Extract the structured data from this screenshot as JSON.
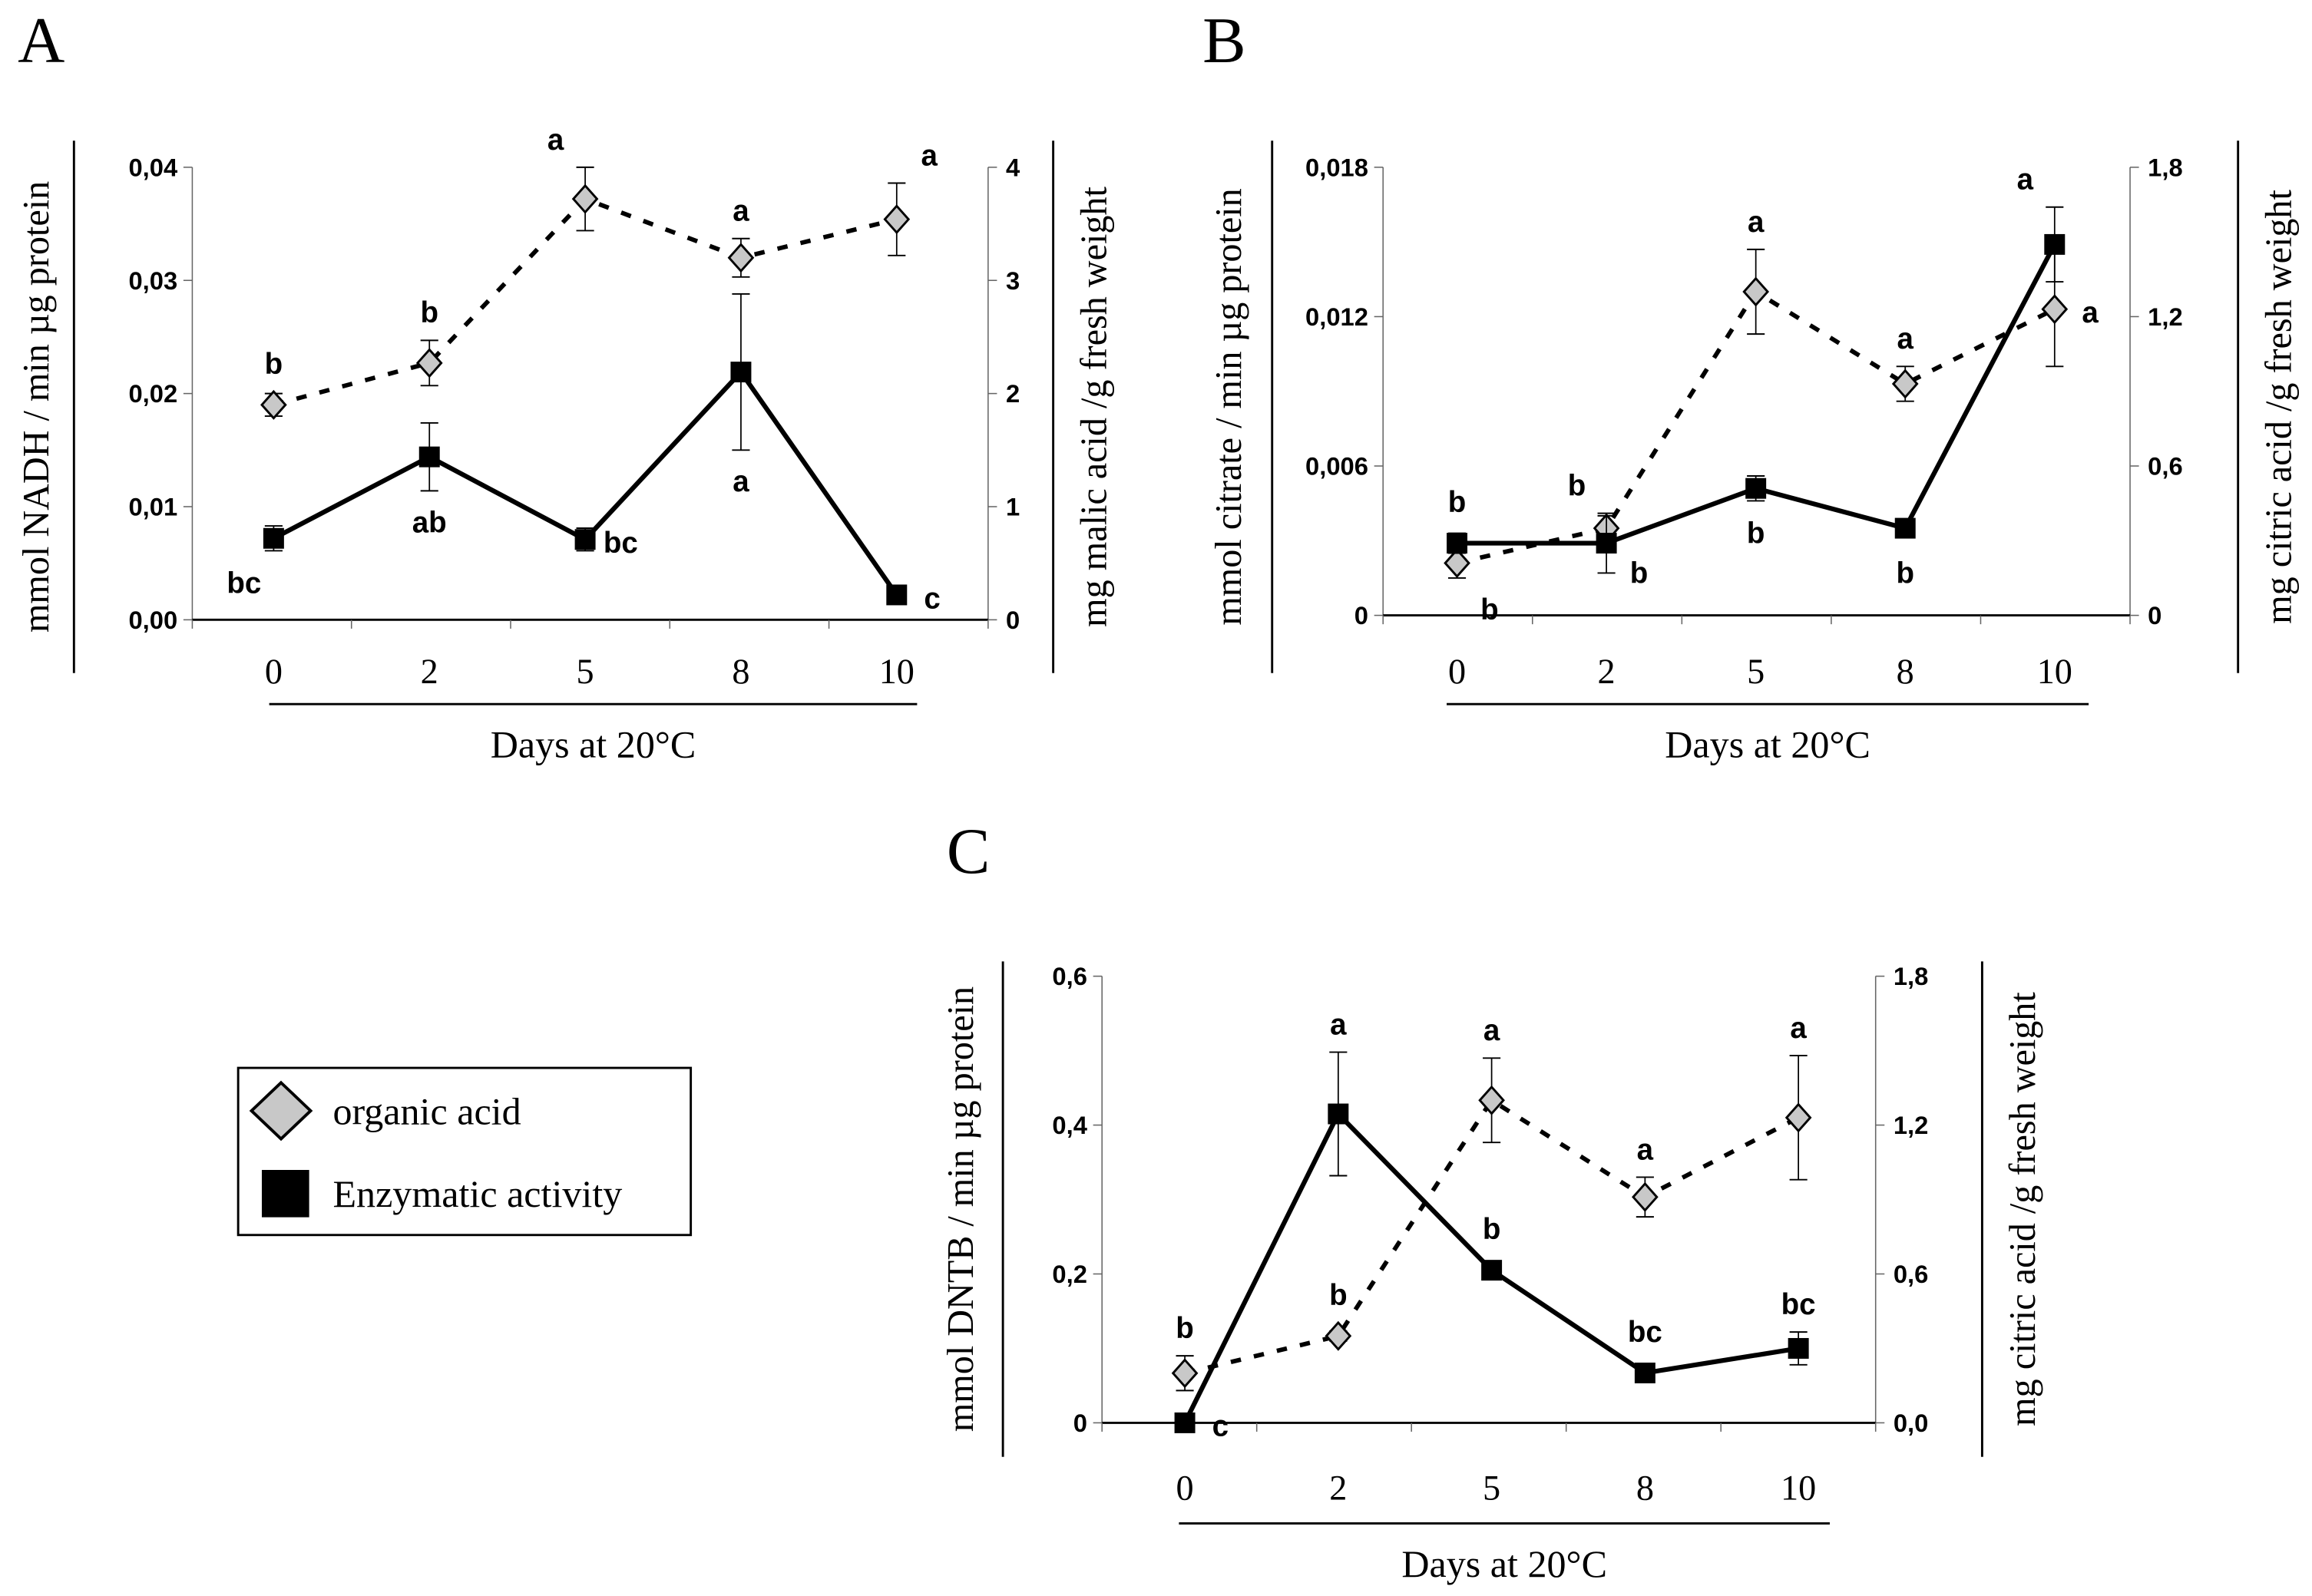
{
  "chart_data": [
    {
      "type": "line",
      "panel": "A",
      "xlabel": "Days at 20°C",
      "categories": [
        "0",
        "2",
        "5",
        "8",
        "10"
      ],
      "ylabel_left": "mmol NADH / min µg protein",
      "ylabel_right": "mg malic acid /g fresh weight",
      "ylim_left": [
        0,
        0.04
      ],
      "ylim_right": [
        0,
        4
      ],
      "yticks_left": [
        "0,00",
        "0,01",
        "0,02",
        "0,03",
        "0,04"
      ],
      "yticks_right": [
        "0",
        "1",
        "2",
        "3",
        "4"
      ],
      "series": [
        {
          "name": "Enzymatic activity",
          "axis": "left",
          "values": [
            0.0072,
            0.0144,
            0.0071,
            0.0219,
            0.0022
          ],
          "errors": [
            0.0011,
            0.003,
            0.001,
            0.0069,
            0
          ],
          "letters": [
            "bc",
            "ab",
            "bc",
            "a",
            "c"
          ],
          "letter_pos": [
            "below-left",
            "below",
            "right",
            "below",
            "right"
          ]
        },
        {
          "name": "organic acid",
          "axis": "right",
          "values": [
            1.9,
            2.27,
            3.72,
            3.2,
            3.54
          ],
          "errors": [
            0.1,
            0.2,
            0.28,
            0.17,
            0.32
          ],
          "letters": [
            "b",
            "b",
            "a",
            "a",
            "a"
          ],
          "letter_pos": [
            "above",
            "above",
            "above-left",
            "above",
            "above-right"
          ]
        }
      ]
    },
    {
      "type": "line",
      "panel": "B",
      "xlabel": "Days at 20°C",
      "categories": [
        "0",
        "2",
        "5",
        "8",
        "10"
      ],
      "ylabel_left": "mmol citrate / min µg protein",
      "ylabel_right": "mg citric acid /g fresh weight",
      "ylim_left": [
        0,
        0.018
      ],
      "ylim_right": [
        0,
        1.8
      ],
      "yticks_left": [
        "0",
        "0,006",
        "0,012",
        "0,018"
      ],
      "yticks_right": [
        "0",
        "0,6",
        "1,2",
        "1,8"
      ],
      "series": [
        {
          "name": "Enzymatic activity",
          "axis": "left",
          "values": [
            0.0029,
            0.0029,
            0.0051,
            0.0035,
            0.0149
          ],
          "errors": [
            0.0004,
            0.0012,
            0.0005,
            0.0003,
            0.0015
          ],
          "letters": [
            "b",
            "b",
            "b",
            "b",
            "a"
          ],
          "letter_pos": [
            "above",
            "above-left",
            "below",
            "below",
            "above-left"
          ]
        },
        {
          "name": "organic acid",
          "axis": "right",
          "values": [
            0.21,
            0.35,
            1.3,
            0.93,
            1.23
          ],
          "errors": [
            0.06,
            0.05,
            0.17,
            0.07,
            0.23
          ],
          "letters": [
            "b",
            "b",
            "a",
            "a",
            "a"
          ],
          "letter_pos": [
            "below-right",
            "below-right",
            "above",
            "above",
            "right"
          ]
        }
      ]
    },
    {
      "type": "line",
      "panel": "C",
      "xlabel": "Days at 20°C",
      "categories": [
        "0",
        "2",
        "5",
        "8",
        "10"
      ],
      "ylabel_left": "mmol DNTB / min µg protein",
      "ylabel_right": "mg citric acid /g fresh weight",
      "ylim_left": [
        0,
        0.6
      ],
      "ylim_right": [
        0,
        1.8
      ],
      "yticks_left": [
        "0",
        "0,2",
        "0,4",
        "0,6"
      ],
      "yticks_right": [
        "0,0",
        "0,6",
        "1,2",
        "1,8"
      ],
      "series": [
        {
          "name": "Enzymatic activity",
          "axis": "left",
          "values": [
            0.0,
            0.415,
            0.205,
            0.067,
            0.1
          ],
          "errors": [
            0,
            0.083,
            0,
            0.012,
            0.022
          ],
          "letters": [
            "c",
            "a",
            "b",
            "bc",
            "bc"
          ],
          "letter_pos": [
            "right",
            "above",
            "above",
            "above",
            "above"
          ]
        },
        {
          "name": "organic acid",
          "axis": "right",
          "values": [
            0.2,
            0.35,
            1.3,
            0.91,
            1.23
          ],
          "errors": [
            0.07,
            0.02,
            0.17,
            0.08,
            0.25
          ],
          "letters": [
            "b",
            "b",
            "a",
            "a",
            "a"
          ],
          "letter_pos": [
            "above",
            "above",
            "above",
            "above",
            "above"
          ]
        }
      ]
    }
  ],
  "legend": {
    "items": [
      {
        "label": "organic acid",
        "marker": "diamond",
        "color": "#c8c8c8"
      },
      {
        "label": "Enzymatic activity",
        "marker": "square",
        "color": "#000000"
      }
    ]
  },
  "colors": {
    "enzyme": "#000000",
    "acid_fill": "#c8c8c8"
  }
}
